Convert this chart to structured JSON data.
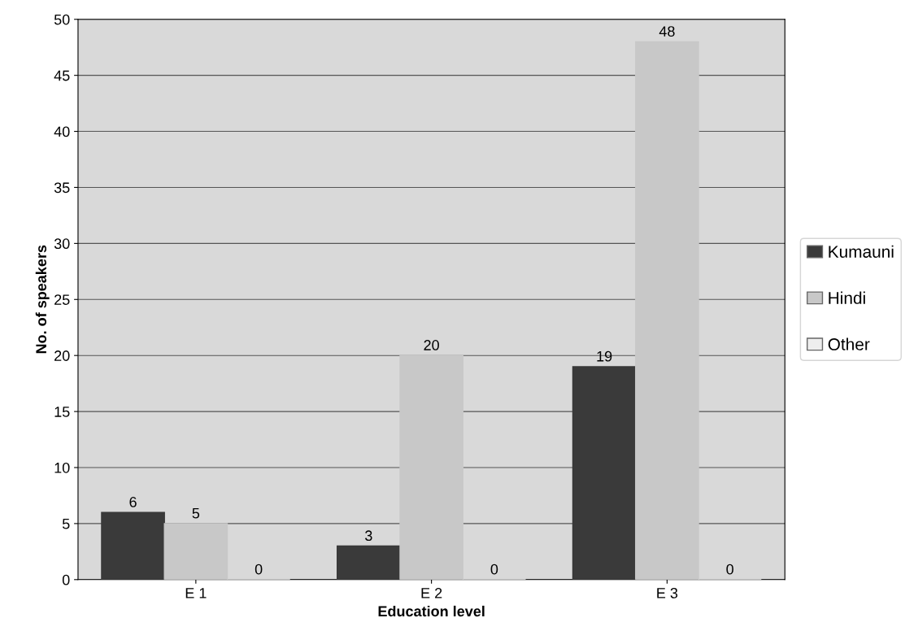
{
  "chart_data": {
    "type": "bar",
    "xlabel": "Education level",
    "ylabel": "No. of speakers",
    "categories": [
      "E 1",
      "E 2",
      "E 3"
    ],
    "series": [
      {
        "name": "Kumauni",
        "color": "#3a3a3a",
        "values": [
          6,
          3,
          19
        ]
      },
      {
        "name": "Hindi",
        "color": "#c8c8c8",
        "values": [
          5,
          20,
          48
        ]
      },
      {
        "name": "Other",
        "color": "#eeeeee",
        "values": [
          0,
          0,
          0
        ]
      }
    ],
    "ylim": [
      0,
      50
    ],
    "yticks": [
      0,
      5,
      10,
      15,
      20,
      25,
      30,
      35,
      40,
      45,
      50
    ],
    "grid": "y",
    "legend": "right",
    "data_labels": true
  }
}
